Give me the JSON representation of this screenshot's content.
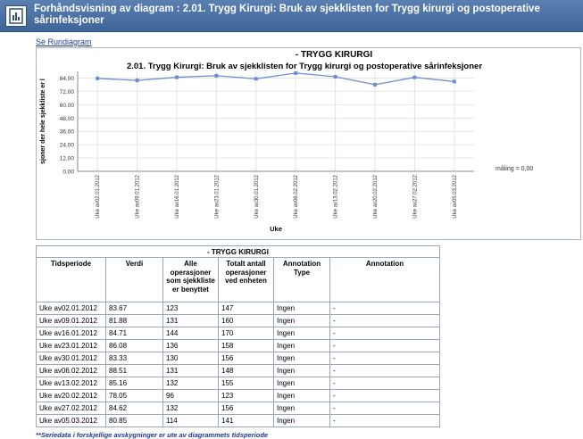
{
  "window": {
    "title": "Forhåndsvisning av diagram : 2.01. Trygg Kirurgi: Bruk av sjekklisten for Trygg kirurgi og postoperative sårinfeksjoner"
  },
  "links": {
    "rundiagram": "Se Rundiagram"
  },
  "colors": {
    "titlebar": "#4a6fa5",
    "series": "#6a8fd0",
    "link": "#1b3a8c"
  },
  "chart_data": {
    "type": "line",
    "title": "- TRYGG KIRURGI",
    "subtitle": "2.01. Trygg Kirurgi: Bruk av sjekklisten for Trygg kirurgi og postoperative sårinfeksjoner",
    "xlabel": "Uke",
    "ylabel": "sjoner der hele sjekkliste er l",
    "ylim": [
      0,
      90
    ],
    "yticks": [
      "84,00",
      "72,00",
      "60,00",
      "48,00",
      "36,00",
      "24,00",
      "12,00",
      "0,00"
    ],
    "ytick_values": [
      84,
      72,
      60,
      48,
      36,
      24,
      12,
      0
    ],
    "categories": [
      "Uke av02.01.2012",
      "Uke av09.01.2012",
      "Uke av16.01.2012",
      "Uke av23.01.2012",
      "Uke av30.01.2012",
      "Uke av06.02.2012",
      "Uke av13.02.2012",
      "Uke av20.02.2012",
      "Uke av27.02.2012",
      "Uke av05.03.2012"
    ],
    "values": [
      83.67,
      81.88,
      84.71,
      86.08,
      83.33,
      88.51,
      85.16,
      78.05,
      84.62,
      80.85
    ],
    "annotation": "måling = 0,00",
    "grid": true
  },
  "table": {
    "caption": "- TRYGG KIRURGI",
    "headers": [
      "Tidsperiode",
      "Verdi",
      "Alle operasjoner som sjekkliste er benyttet",
      "Totalt antall operasjoner ved enheten",
      "Annotation Type",
      "Annotation"
    ],
    "rows": [
      [
        "Uke av02.01.2012",
        "83.67",
        "123",
        "147",
        "Ingen",
        "-"
      ],
      [
        "Uke av09.01.2012",
        "81.88",
        "131",
        "160",
        "Ingen",
        "-"
      ],
      [
        "Uke av16.01.2012",
        "84.71",
        "144",
        "170",
        "Ingen",
        "-"
      ],
      [
        "Uke av23.01.2012",
        "86.08",
        "136",
        "158",
        "Ingen",
        "-"
      ],
      [
        "Uke av30.01.2012",
        "83.33",
        "130",
        "156",
        "Ingen",
        "-"
      ],
      [
        "Uke av06.02.2012",
        "88.51",
        "131",
        "148",
        "Ingen",
        "-"
      ],
      [
        "Uke av13.02.2012",
        "85.16",
        "132",
        "155",
        "Ingen",
        "-"
      ],
      [
        "Uke av20.02.2012",
        "78.05",
        "96",
        "123",
        "Ingen",
        "-"
      ],
      [
        "Uke av27.02.2012",
        "84.62",
        "132",
        "156",
        "Ingen",
        "-"
      ],
      [
        "Uke av05.03.2012",
        "80.85",
        "114",
        "141",
        "Ingen",
        "-"
      ]
    ]
  },
  "footnote": "**Seriedata i forskjellige avskygninger er ute av diagrammets tidsperiode"
}
